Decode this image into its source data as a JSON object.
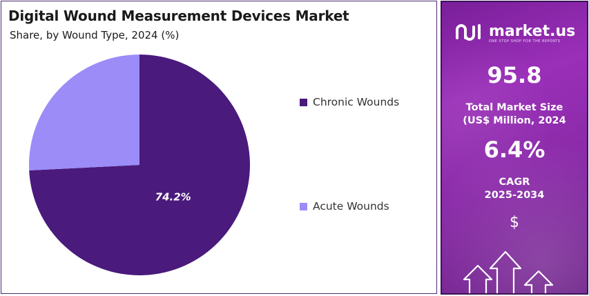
{
  "title": "Digital Wound Measurement Devices Market",
  "subtitle": "Share, by Wound Type, 2024 (%)",
  "chart_data": {
    "type": "pie",
    "title": "Digital Wound Measurement Devices Market",
    "subtitle": "Share, by Wound Type, 2024 (%)",
    "slices": [
      {
        "name": "Chronic Wounds",
        "value": 74.2,
        "color": "#4a1a7c",
        "label": "74.2%"
      },
      {
        "name": "Acute Wounds",
        "value": 25.8,
        "color": "#9b8cf8"
      }
    ],
    "legend_placement": "right"
  },
  "legend": [
    {
      "label": "Chronic Wounds",
      "color": "#4a1a7c"
    },
    {
      "label": "Acute Wounds",
      "color": "#9b8cf8"
    }
  ],
  "sidebar": {
    "brand": "market.us",
    "tagline": "ONE STOP SHOP FOR THE REPORTS",
    "market_size_value": "95.8",
    "market_size_label_line1": "Total Market Size",
    "market_size_label_line2": "(US$ Million, 2024",
    "cagr_value": "6.4%",
    "cagr_label_line1": "CAGR",
    "cagr_label_line2": "2025-2034",
    "currency_symbol": "$"
  }
}
